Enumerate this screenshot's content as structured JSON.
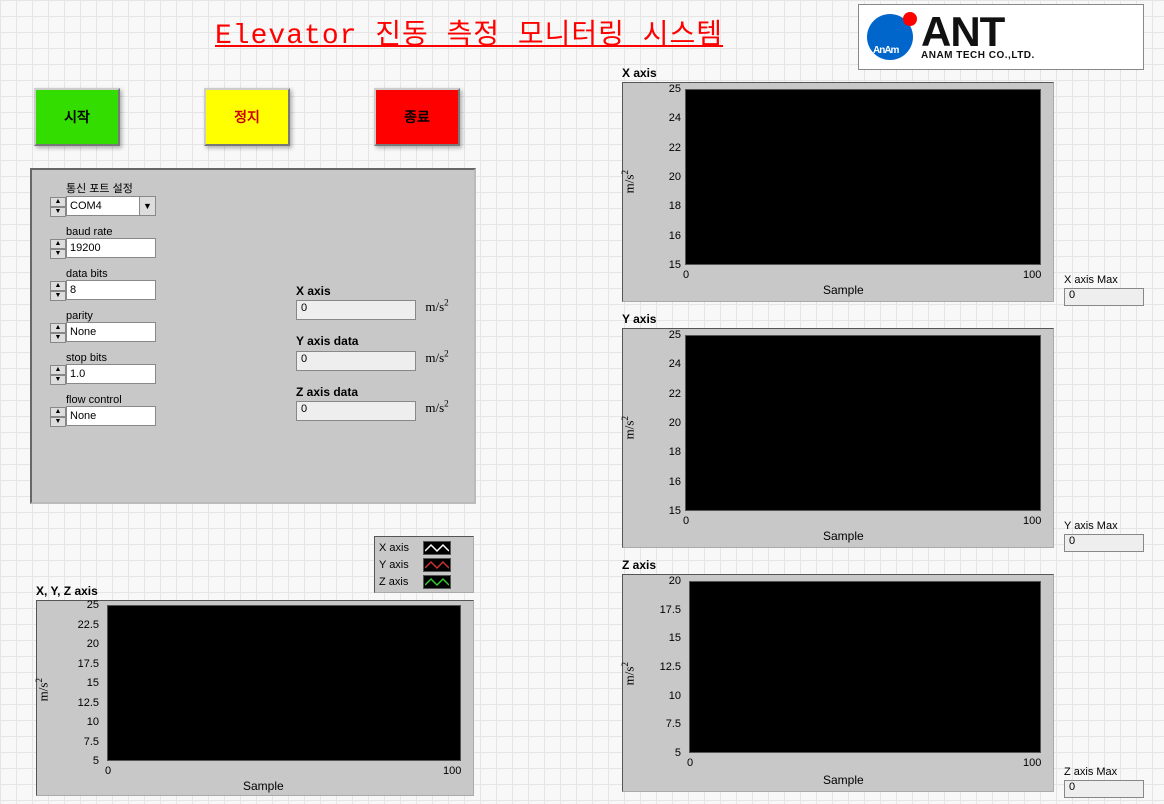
{
  "title": "Elevator 진동 측정 모니터링 시스템",
  "logo": {
    "brand": "ANT",
    "sub": "ANAM TECH CO.,LTD.",
    "inner": "AnAm"
  },
  "buttons": {
    "start": "시작",
    "stop": "정지",
    "exit": "종료"
  },
  "settings": {
    "group_label": "통신 포트 설정",
    "port": "COM4",
    "baud_label": "baud rate",
    "baud": "19200",
    "databits_label": "data bits",
    "databits": "8",
    "parity_label": "parity",
    "parity": "None",
    "stopbits_label": "stop bits",
    "stopbits": "1.0",
    "flow_label": "flow control",
    "flow": "None"
  },
  "readouts": {
    "x_label": "X axis",
    "x_val": "0",
    "y_label": "Y axis data",
    "y_val": "0",
    "z_label": "Z axis data",
    "z_val": "0",
    "unit_html": "m/s²"
  },
  "charts": {
    "x": {
      "title": "X axis",
      "ylabel": "m/s²",
      "xlabel": "Sample",
      "yticks": [
        "25",
        "24",
        "22",
        "20",
        "18",
        "16",
        "15"
      ],
      "xmin": "0",
      "xmax": "100",
      "ylim": [
        15,
        25
      ],
      "xlim": [
        0,
        100
      ],
      "bg": "#000000",
      "panel": "#c8c8c8"
    },
    "y": {
      "title": "Y axis",
      "ylabel": "m/s²",
      "xlabel": "Sample",
      "yticks": [
        "25",
        "24",
        "22",
        "20",
        "18",
        "16",
        "15"
      ],
      "xmin": "0",
      "xmax": "100",
      "ylim": [
        15,
        25
      ],
      "xlim": [
        0,
        100
      ],
      "bg": "#000000",
      "panel": "#c8c8c8"
    },
    "z": {
      "title": "Z axis",
      "ylabel": "m/s²",
      "xlabel": "Sample",
      "yticks": [
        "20",
        "17.5",
        "15",
        "12.5",
        "10",
        "7.5",
        "5"
      ],
      "xmin": "0",
      "xmax": "100",
      "ylim": [
        5,
        20
      ],
      "xlim": [
        0,
        100
      ],
      "bg": "#000000",
      "panel": "#c8c8c8"
    },
    "xyz": {
      "title": "X, Y, Z axis",
      "ylabel": "m/s²",
      "xlabel": "Sample",
      "yticks": [
        "25",
        "22.5",
        "20",
        "17.5",
        "15",
        "12.5",
        "10",
        "7.5",
        "5"
      ],
      "xmin": "0",
      "xmax": "100",
      "ylim": [
        5,
        25
      ],
      "xlim": [
        0,
        100
      ],
      "bg": "#000000",
      "panel": "#c8c8c8"
    }
  },
  "legend": {
    "items": [
      {
        "label": "X axis",
        "color": "#ffffff"
      },
      {
        "label": "Y axis",
        "color": "#cc3333"
      },
      {
        "label": "Z axis",
        "color": "#33cc33"
      }
    ]
  },
  "max_boxes": {
    "x": {
      "label": "X axis Max",
      "val": "0"
    },
    "y": {
      "label": "Y axis Max",
      "val": "0"
    },
    "z": {
      "label": "Z axis Max",
      "val": "0"
    }
  },
  "colors": {
    "title": "#ff0000",
    "btn_start": "#33dd00",
    "btn_stop": "#ffff00",
    "btn_exit": "#ff0000",
    "panel": "#c8c8c8",
    "plot_bg": "#000000"
  }
}
